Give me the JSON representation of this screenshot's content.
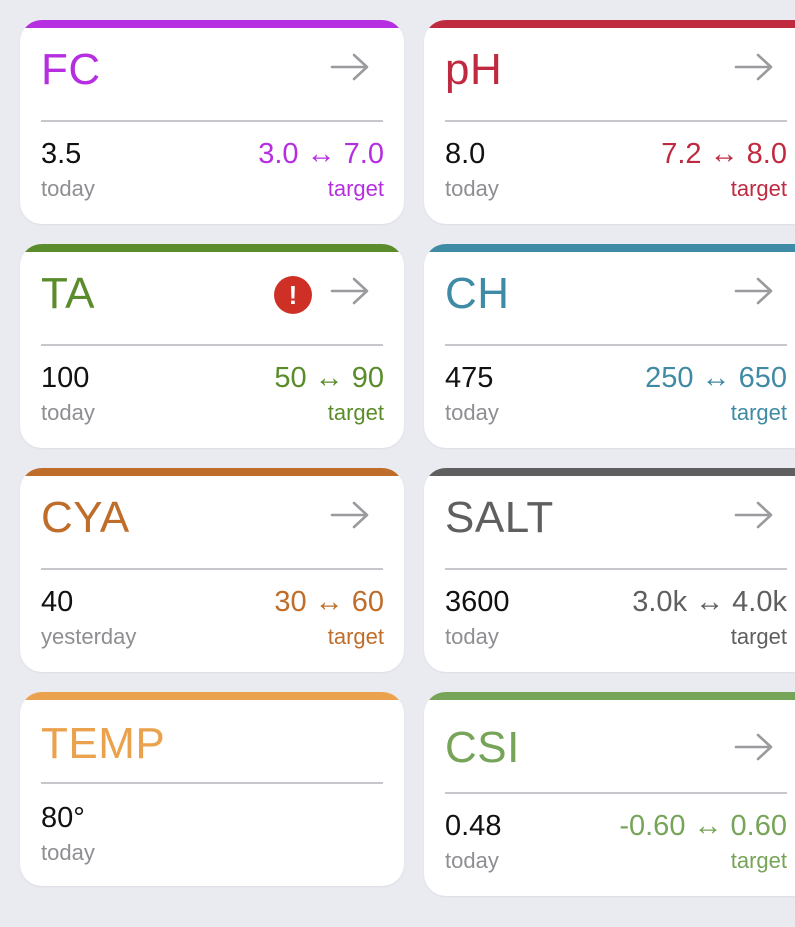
{
  "colors": {
    "FC": "#b52fe0",
    "pH": "#c02a40",
    "TA": "#5a8c2c",
    "CH": "#3f8aa5",
    "CYA": "#bf6d2a",
    "SALT": "#5f5f5f",
    "TEMP": "#eba24e",
    "CSI": "#76a458",
    "alert": "#cf3025",
    "arrow": "#9a9a9f"
  },
  "cards": [
    {
      "title": "FC",
      "value": "3.5",
      "when": "today",
      "range": "3.0 ↔ 7.0",
      "target_label": "target",
      "alert": false,
      "icon": "arrow-right-icon"
    },
    {
      "title": "pH",
      "value": "8.0",
      "when": "today",
      "range": "7.2 ↔ 8.0",
      "target_label": "target",
      "alert": false,
      "icon": "arrow-right-icon"
    },
    {
      "title": "TA",
      "value": "100",
      "when": "today",
      "range": "50 ↔ 90",
      "target_label": "target",
      "alert": true,
      "alert_glyph": "!",
      "icon": "arrow-right-icon"
    },
    {
      "title": "CH",
      "value": "475",
      "when": "today",
      "range": "250 ↔ 650",
      "target_label": "target",
      "alert": false,
      "icon": "arrow-right-icon"
    },
    {
      "title": "CYA",
      "value": "40",
      "when": "yesterday",
      "range": "30 ↔ 60",
      "target_label": "target",
      "alert": false,
      "icon": "arrow-right-icon"
    },
    {
      "title": "SALT",
      "value": "3600",
      "when": "today",
      "range": "3.0k ↔ 4.0k",
      "target_label": "target",
      "alert": false,
      "icon": "arrow-right-icon"
    },
    {
      "title": "TEMP",
      "value": "80°",
      "when": "today",
      "range": "",
      "target_label": "",
      "alert": false,
      "icon": ""
    },
    {
      "title": "CSI",
      "value": "0.48",
      "when": "today",
      "range": "-0.60 ↔ 0.60",
      "target_label": "target",
      "alert": false,
      "icon": "arrow-right-icon"
    }
  ]
}
